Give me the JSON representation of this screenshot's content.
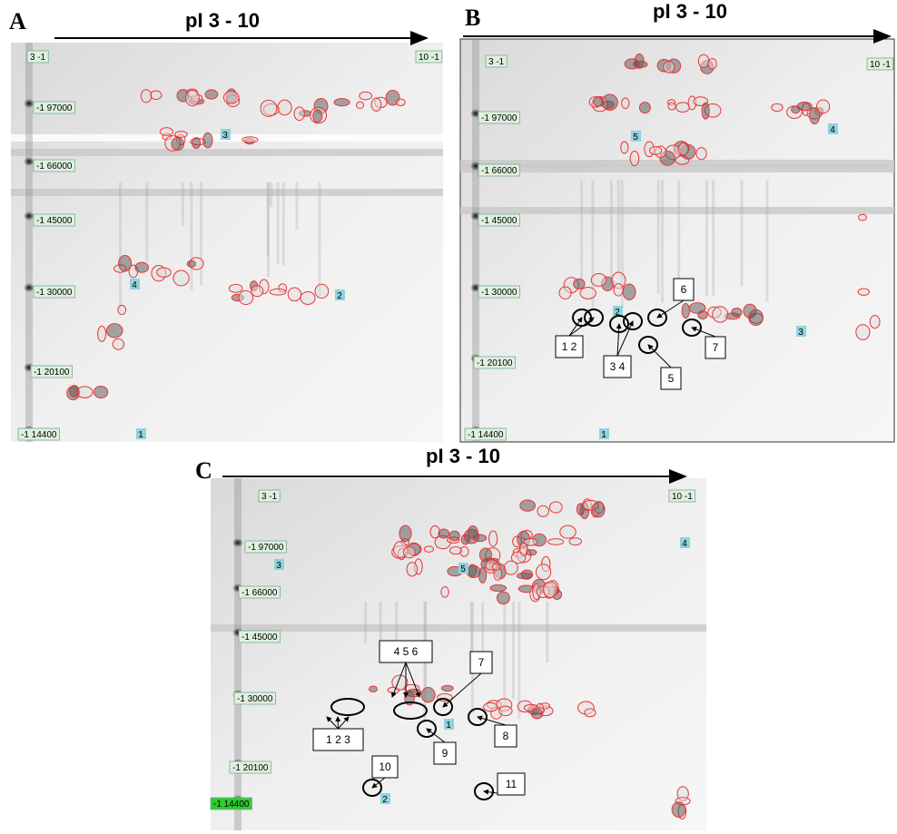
{
  "panels": [
    {
      "letter": "A",
      "axis_label": "pI 3 - 10",
      "pi_markers": [
        "3 -1",
        "10 -1"
      ],
      "mw_markers": [
        "-1 97000",
        "-1 66000",
        "-1 45000",
        "-1 30000",
        "-1 20100",
        "-1 14400"
      ],
      "spot_labels": [
        "1",
        "2",
        "3",
        "4"
      ],
      "callouts": []
    },
    {
      "letter": "B",
      "axis_label": "pI 3 - 10",
      "pi_markers": [
        "3 -1",
        "10 -1"
      ],
      "mw_markers": [
        "-1 97000",
        "-1 66000",
        "-1 45000",
        "-1 30000",
        "-1 20100",
        "-1 14400"
      ],
      "spot_labels": [
        "5",
        "4",
        "2",
        "3",
        "1"
      ],
      "callouts": [
        "1 2",
        "3 4",
        "5",
        "6",
        "7"
      ]
    },
    {
      "letter": "C",
      "axis_label": "pI 3 - 10",
      "pi_markers": [
        "3 -1",
        "10 -1"
      ],
      "mw_markers": [
        "-1 97000",
        "-1 66000",
        "-1 45000",
        "-1 30000",
        "-1 20100",
        "-1 14400"
      ],
      "spot_labels": [
        "3",
        "5",
        "4",
        "1",
        "2"
      ],
      "callouts": [
        "4 5 6",
        "1 2 3",
        "7",
        "8",
        "9",
        "10",
        "11"
      ]
    }
  ]
}
